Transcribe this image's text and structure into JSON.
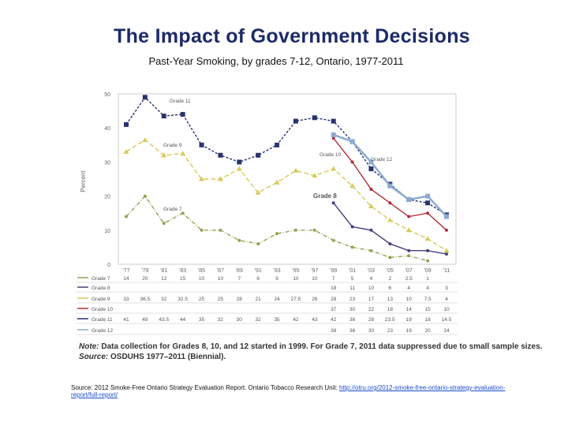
{
  "title": "The Impact of Government Decisions",
  "subtitle": "Past-Year Smoking, by grades 7-12, Ontario, 1977-2011",
  "note_label": "Note:",
  "note_text": "Data collection for Grades 8, 10, and 12 started in 1999. For Grade 7, 2011 data suppressed due to small sample sizes.",
  "source_label": "Source:",
  "source_text": "OSDUHS 1977–2011 (Biennial).",
  "footer_text": "Source: 2012 Smoke-Free Ontario Strategy Evaluation Report. Ontario Tobacco Research Unit: ",
  "footer_link": "http://otru.org/2012-smoke-free-ontario-strategy-evaluation-report/full-report/",
  "chart_data": {
    "type": "line",
    "ylabel": "Percent",
    "ylim": [
      0,
      50
    ],
    "yticks": [
      "0",
      "10",
      "20",
      "30",
      "40",
      "50"
    ],
    "categories": [
      "'77",
      "'79",
      "'81",
      "'83",
      "'85",
      "'87",
      "'89",
      "'91",
      "'93",
      "'95",
      "'97",
      "'99",
      "'01",
      "'03",
      "'05",
      "'07",
      "'09",
      "'11"
    ],
    "grid": false,
    "series": [
      {
        "name": "Grade 7",
        "label": "Grade 7",
        "color": "#8fa552",
        "values": [
          14,
          20,
          12,
          15,
          10,
          10,
          7,
          6,
          9,
          10,
          10,
          7,
          5,
          4,
          2,
          2.5,
          1,
          null
        ]
      },
      {
        "name": "Grade 8",
        "label": "Grade 8",
        "color": "#4b3c7c",
        "values": [
          null,
          null,
          null,
          null,
          null,
          null,
          null,
          null,
          null,
          null,
          null,
          18,
          11,
          10,
          6,
          4,
          4,
          3
        ]
      },
      {
        "name": "Grade 9",
        "label": "Grade 9",
        "color": "#d9c95c",
        "values": [
          33,
          36.5,
          32,
          32.5,
          25,
          25,
          28,
          21,
          24,
          27.5,
          26,
          28,
          23,
          17,
          13,
          10,
          7.5,
          4
        ]
      },
      {
        "name": "Grade 10",
        "label": "Grade 10",
        "color": "#b0303a",
        "values": [
          null,
          null,
          null,
          null,
          null,
          null,
          null,
          null,
          null,
          null,
          null,
          37,
          30,
          22,
          18,
          14,
          15,
          10
        ]
      },
      {
        "name": "Grade 11",
        "label": "Grade 11",
        "color": "#29336e",
        "values": [
          41,
          49,
          43.5,
          44,
          35,
          32,
          30,
          32,
          35,
          42,
          43,
          42,
          36,
          28,
          23.5,
          19,
          18,
          14.5
        ]
      },
      {
        "name": "Grade 12",
        "label": "Grade 12",
        "color": "#8caad2",
        "values": [
          null,
          null,
          null,
          null,
          null,
          null,
          null,
          null,
          null,
          null,
          null,
          38,
          36,
          30,
          23,
          19,
          20,
          14
        ]
      }
    ]
  }
}
